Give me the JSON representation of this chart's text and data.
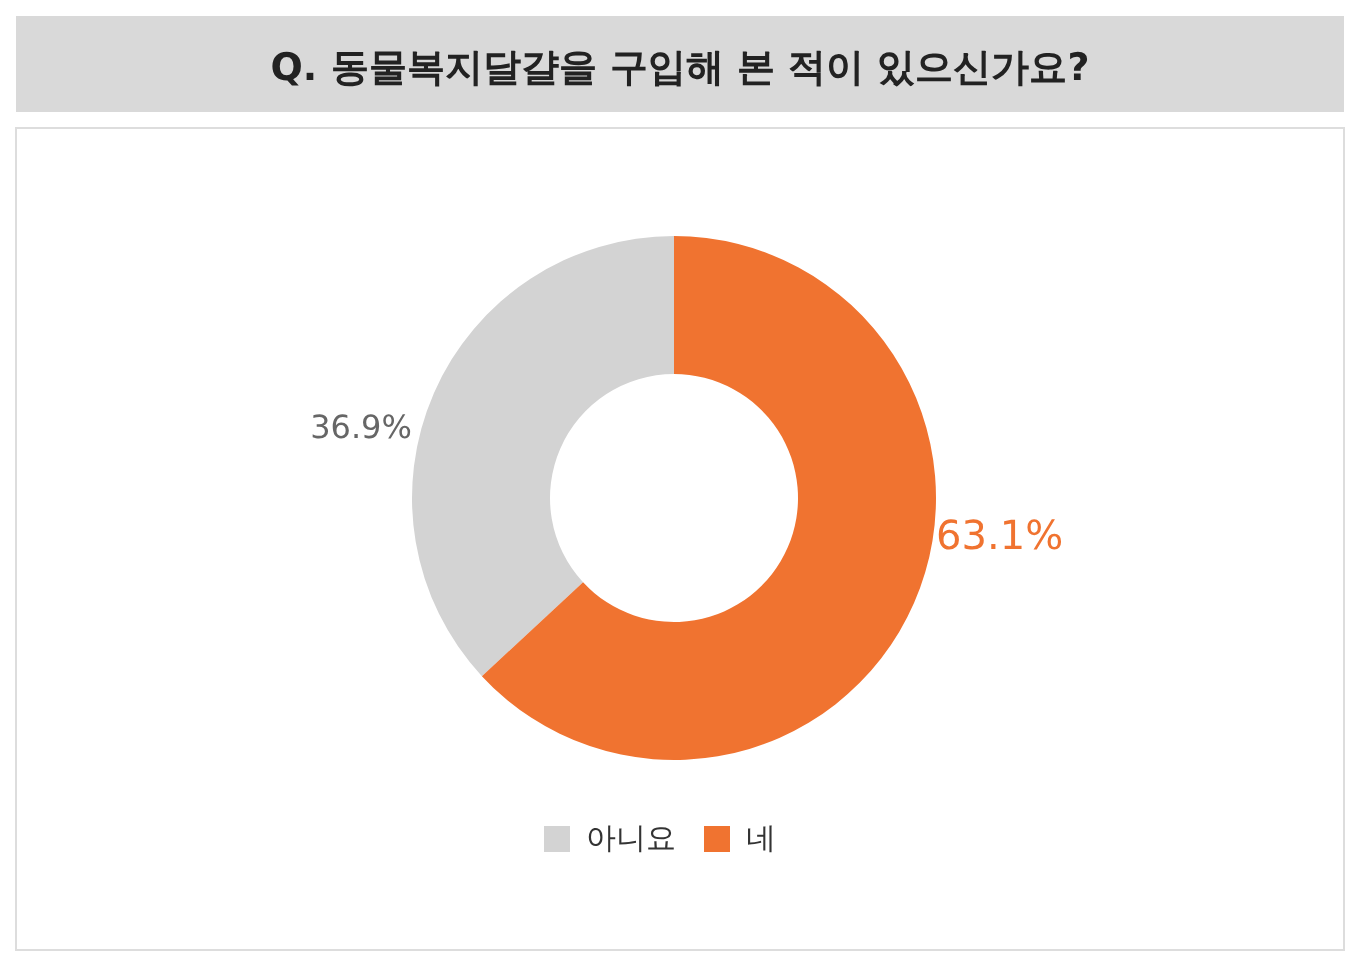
{
  "chart_data": {
    "type": "donut",
    "title": "Q. 동물복지달걀을 구입해 본 적이 있으신가요?",
    "categories": [
      "아니요",
      "네"
    ],
    "values": [
      36.9,
      63.1
    ],
    "colors": [
      "#d3d3d3",
      "#f07330"
    ],
    "value_labels": [
      "36.9%",
      "63.1%"
    ],
    "legend": "bottom"
  }
}
